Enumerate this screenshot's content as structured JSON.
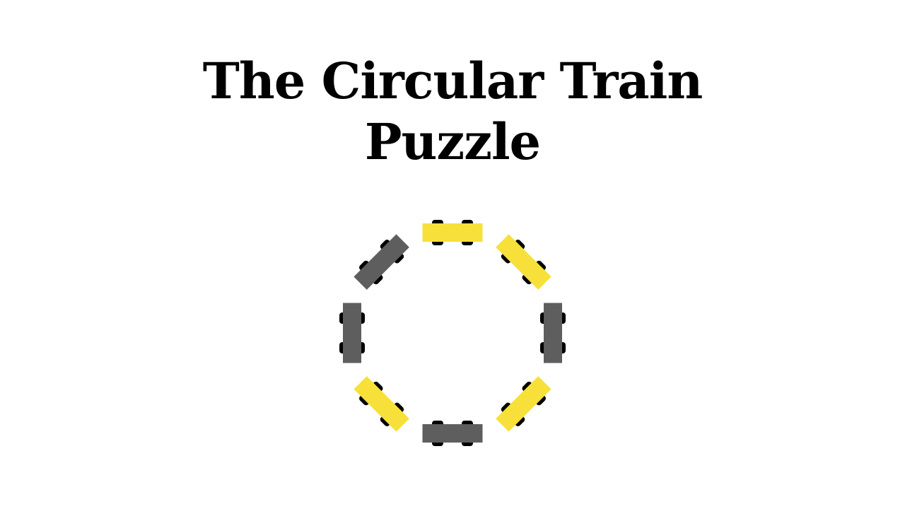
{
  "title": {
    "line1": "The Circular Train",
    "line2": "Puzzle"
  },
  "colors": {
    "background": "#ffffff",
    "title": "#000000",
    "wheel": "#000000"
  },
  "train": {
    "car_count": 8,
    "cars": [
      {
        "position": "top",
        "color": "#f7e03a"
      },
      {
        "position": "top-right",
        "color": "#f7e03a"
      },
      {
        "position": "right",
        "color": "#5e5e5e"
      },
      {
        "position": "bottom-right",
        "color": "#f7e03a"
      },
      {
        "position": "bottom",
        "color": "#5e5e5e"
      },
      {
        "position": "bottom-left",
        "color": "#f7e03a"
      },
      {
        "position": "left",
        "color": "#5e5e5e"
      },
      {
        "position": "top-left",
        "color": "#5e5e5e"
      }
    ]
  }
}
